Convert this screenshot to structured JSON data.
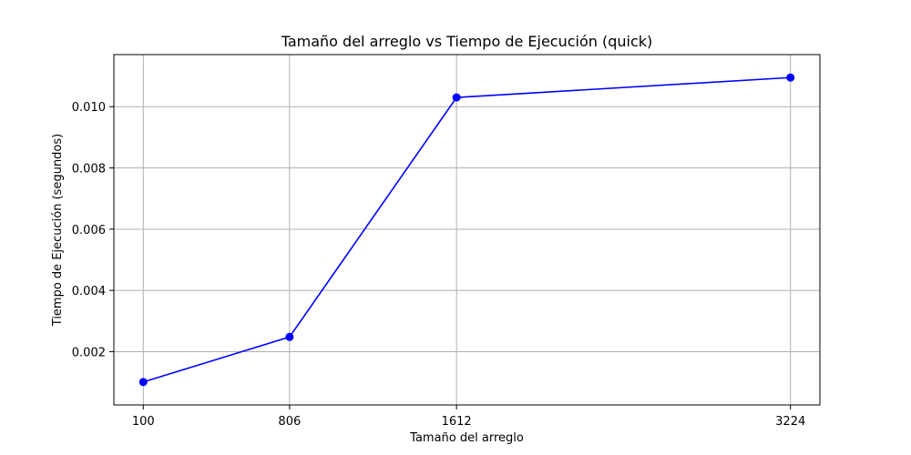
{
  "chart_data": {
    "type": "line",
    "title": "Tamaño del arreglo vs Tiempo de Ejecución (quick)",
    "xlabel": "Tamaño del arreglo",
    "ylabel": "Tiempo de Ejecución (segundos)",
    "x": [
      100,
      806,
      1612,
      3224
    ],
    "x_tick_labels": [
      "100",
      "806",
      "1612",
      "3224"
    ],
    "series": [
      {
        "values": [
          0.00101,
          0.00248,
          0.0103,
          0.01095
        ],
        "color": "#0000ff",
        "marker": "circle"
      }
    ],
    "xlim": [
      -42,
      3366
    ],
    "ylim": [
      0.00026,
      0.0117
    ],
    "y_ticks": [
      0.002,
      0.004,
      0.006,
      0.008,
      0.01
    ],
    "y_tick_labels": [
      "0.002",
      "0.004",
      "0.006",
      "0.008",
      "0.010"
    ],
    "grid": true,
    "colors": {
      "grid": "#b0b0b0",
      "axes": "#000000",
      "line": "#0000ff"
    }
  }
}
